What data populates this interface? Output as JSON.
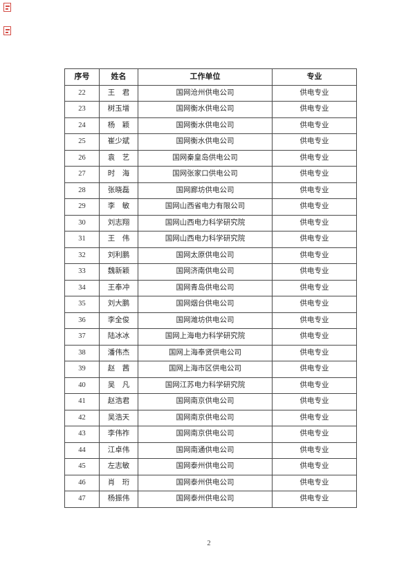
{
  "page": {
    "number": "2",
    "background": "#ffffff",
    "accent_red": "#cc2a22"
  },
  "corner_marks": {
    "description": "two small red scan marks, top-left corner",
    "color": "#cc2a22",
    "count": 2
  },
  "table": {
    "headers": {
      "no": "序号",
      "name": "姓名",
      "org": "工作单位",
      "major": "专业"
    },
    "rows": [
      {
        "no": "22",
        "name": "王　君",
        "org": "国网沧州供电公司",
        "major": "供电专业"
      },
      {
        "no": "23",
        "name": "树玉增",
        "org": "国网衡水供电公司",
        "major": "供电专业"
      },
      {
        "no": "24",
        "name": "杨　颖",
        "org": "国网衡水供电公司",
        "major": "供电专业"
      },
      {
        "no": "25",
        "name": "崔少斌",
        "org": "国网衡水供电公司",
        "major": "供电专业"
      },
      {
        "no": "26",
        "name": "袁　艺",
        "org": "国网秦皇岛供电公司",
        "major": "供电专业"
      },
      {
        "no": "27",
        "name": "时　海",
        "org": "国网张家口供电公司",
        "major": "供电专业"
      },
      {
        "no": "28",
        "name": "张晓磊",
        "org": "国网廊坊供电公司",
        "major": "供电专业"
      },
      {
        "no": "29",
        "name": "李　敏",
        "org": "国网山西省电力有限公司",
        "major": "供电专业"
      },
      {
        "no": "30",
        "name": "刘志翔",
        "org": "国网山西电力科学研究院",
        "major": "供电专业"
      },
      {
        "no": "31",
        "name": "王　伟",
        "org": "国网山西电力科学研究院",
        "major": "供电专业"
      },
      {
        "no": "32",
        "name": "刘利鹏",
        "org": "国网太原供电公司",
        "major": "供电专业"
      },
      {
        "no": "33",
        "name": "魏新颖",
        "org": "国网济南供电公司",
        "major": "供电专业"
      },
      {
        "no": "34",
        "name": "王奉冲",
        "org": "国网青岛供电公司",
        "major": "供电专业"
      },
      {
        "no": "35",
        "name": "刘大鹏",
        "org": "国网烟台供电公司",
        "major": "供电专业"
      },
      {
        "no": "36",
        "name": "李全俊",
        "org": "国网潍坊供电公司",
        "major": "供电专业"
      },
      {
        "no": "37",
        "name": "陆冰冰",
        "org": "国网上海电力科学研究院",
        "major": "供电专业"
      },
      {
        "no": "38",
        "name": "潘伟杰",
        "org": "国网上海奉贤供电公司",
        "major": "供电专业"
      },
      {
        "no": "39",
        "name": "赵　茜",
        "org": "国网上海市区供电公司",
        "major": "供电专业"
      },
      {
        "no": "40",
        "name": "吴　凡",
        "org": "国网江苏电力科学研究院",
        "major": "供电专业"
      },
      {
        "no": "41",
        "name": "赵浩君",
        "org": "国网南京供电公司",
        "major": "供电专业"
      },
      {
        "no": "42",
        "name": "吴浩天",
        "org": "国网南京供电公司",
        "major": "供电专业"
      },
      {
        "no": "43",
        "name": "李伟祚",
        "org": "国网南京供电公司",
        "major": "供电专业"
      },
      {
        "no": "44",
        "name": "江卓伟",
        "org": "国网南通供电公司",
        "major": "供电专业"
      },
      {
        "no": "45",
        "name": "左志敏",
        "org": "国网泰州供电公司",
        "major": "供电专业"
      },
      {
        "no": "46",
        "name": "肖　珩",
        "org": "国网泰州供电公司",
        "major": "供电专业"
      },
      {
        "no": "47",
        "name": "杨振伟",
        "org": "国网泰州供电公司",
        "major": "供电专业"
      }
    ]
  }
}
